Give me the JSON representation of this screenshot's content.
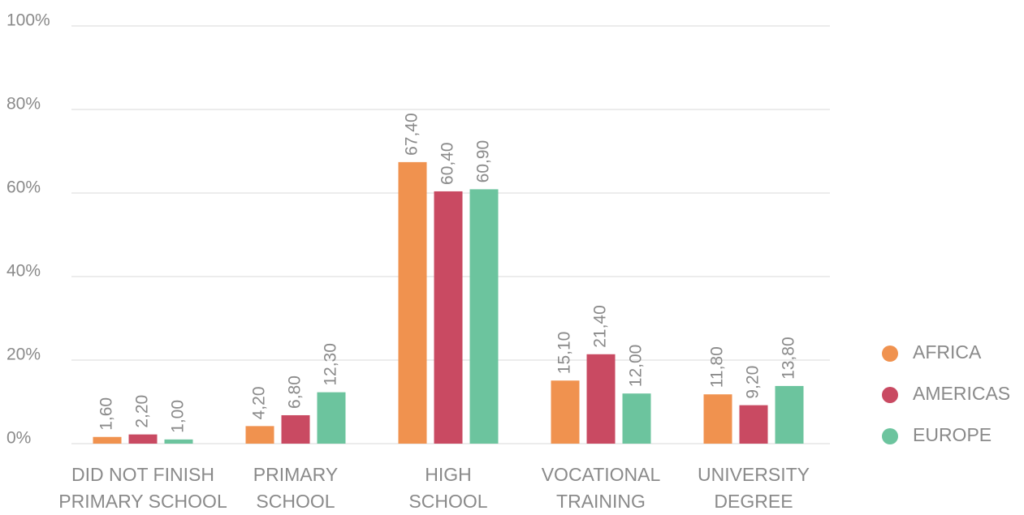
{
  "chart_data": {
    "type": "bar",
    "categories": [
      [
        "DID NOT FINISH",
        "PRIMARY SCHOOL"
      ],
      [
        "PRIMARY",
        "SCHOOL"
      ],
      [
        "HIGH",
        "SCHOOL"
      ],
      [
        "VOCATIONAL",
        "TRAINING"
      ],
      [
        "UNIVERSITY",
        "DEGREE"
      ]
    ],
    "series": [
      {
        "name": "AFRICA",
        "color": "#f0924f",
        "values": [
          1.6,
          4.2,
          67.4,
          15.1,
          11.8
        ],
        "value_labels": [
          "1,60",
          "4,20",
          "67,40",
          "15,10",
          "11,80"
        ]
      },
      {
        "name": "AMERICAS",
        "color": "#c94a62",
        "values": [
          2.2,
          6.8,
          60.4,
          21.4,
          9.2
        ],
        "value_labels": [
          "2,20",
          "6,80",
          "60,40",
          "21,40",
          "9,20"
        ]
      },
      {
        "name": "EUROPE",
        "color": "#6cc49e",
        "values": [
          1.0,
          12.3,
          60.9,
          12.0,
          13.8
        ],
        "value_labels": [
          "1,00",
          "12,30",
          "60,90",
          "12,00",
          "13,80"
        ]
      }
    ],
    "ylim": [
      0,
      100
    ],
    "yticks": [
      {
        "value": 0,
        "label": "0%"
      },
      {
        "value": 20,
        "label": "20%"
      },
      {
        "value": 40,
        "label": "40%"
      },
      {
        "value": 60,
        "label": "60%"
      },
      {
        "value": 80,
        "label": "80%"
      },
      {
        "value": 100,
        "label": "100%"
      }
    ],
    "grid": true,
    "legend": "right"
  }
}
